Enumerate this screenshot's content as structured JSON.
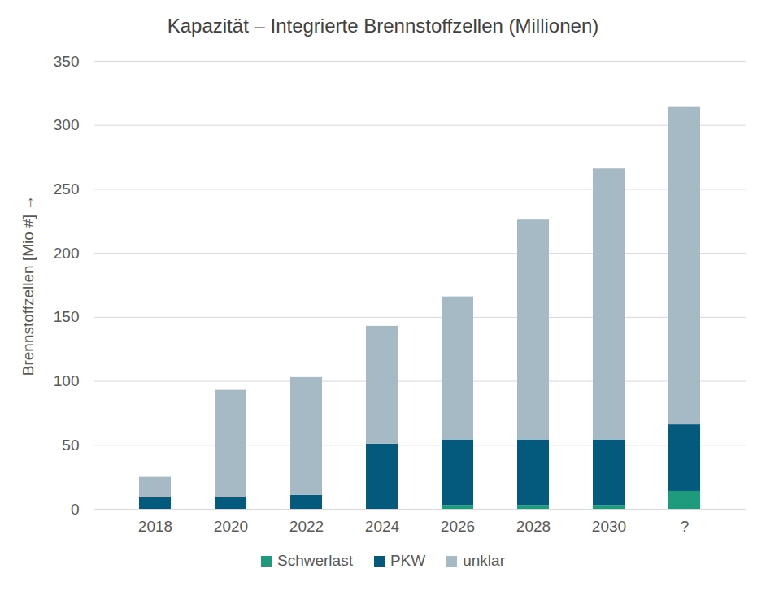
{
  "chart_data": {
    "type": "bar",
    "title": "Kapazität – Integrierte Brennstoffzellen (Millionen)",
    "y_label": "Brennstoffzellen [Mio #]",
    "categories": [
      "2018",
      "2020",
      "2022",
      "2024",
      "2026",
      "2028",
      "2030",
      "?"
    ],
    "series": [
      {
        "name": "Schwerlast",
        "color": "#1e9a7c",
        "values": [
          0,
          0,
          0,
          0,
          3,
          3,
          3,
          14
        ]
      },
      {
        "name": "PKW",
        "color": "#045a7c",
        "values": [
          9,
          9,
          11,
          51,
          51,
          51,
          51,
          52
        ]
      },
      {
        "name": "unklar",
        "color": "#a6bac6",
        "values": [
          16,
          84,
          92,
          92,
          112,
          172,
          212,
          248
        ]
      }
    ],
    "stacked": true,
    "ylim": [
      0,
      350
    ],
    "yticks": [
      0,
      50,
      100,
      150,
      200,
      250,
      300,
      350
    ],
    "grid": true,
    "legend": "bottom"
  }
}
